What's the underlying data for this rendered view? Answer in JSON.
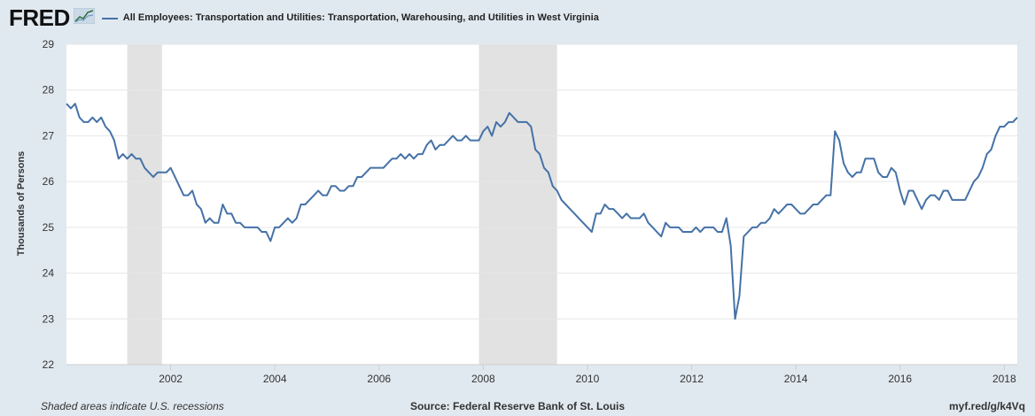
{
  "header": {
    "logo": "FRED",
    "logo_icon": "chart-trend-icon"
  },
  "footer": {
    "left": "Shaded areas indicate U.S. recessions",
    "center": "Source: Federal Reserve Bank of St. Louis",
    "right": "myf.red/g/k4Vq"
  },
  "colors": {
    "background": "#e1e9f0",
    "plot_background": "#ffffff",
    "line": "#4572a7",
    "recession": "#e2e2e2",
    "grid": "#e6e6e6"
  },
  "chart_data": {
    "type": "line",
    "title": "All Employees: Transportation and Utilities: Transportation, Warehousing, and Utilities in West Virginia",
    "xlabel": "",
    "ylabel": "Thousands of Persons",
    "ylim": [
      22,
      29
    ],
    "yticks": [
      22,
      23,
      24,
      25,
      26,
      27,
      28,
      29
    ],
    "xlim": [
      "2000-01",
      "2018-04"
    ],
    "xticks": [
      "2002",
      "2004",
      "2006",
      "2008",
      "2010",
      "2012",
      "2014",
      "2016",
      "2018"
    ],
    "grid": "horizontal",
    "recessions": [
      {
        "start": "2001-03",
        "end": "2001-11"
      },
      {
        "start": "2007-12",
        "end": "2009-06"
      }
    ],
    "series": [
      {
        "name": "All Employees: Transportation and Utilities: Transportation, Warehousing, and Utilities in West Virginia",
        "x": [
          "2000-01",
          "2000-02",
          "2000-03",
          "2000-04",
          "2000-05",
          "2000-06",
          "2000-07",
          "2000-08",
          "2000-09",
          "2000-10",
          "2000-11",
          "2000-12",
          "2001-01",
          "2001-02",
          "2001-03",
          "2001-04",
          "2001-05",
          "2001-06",
          "2001-07",
          "2001-08",
          "2001-09",
          "2001-10",
          "2001-11",
          "2001-12",
          "2002-01",
          "2002-02",
          "2002-03",
          "2002-04",
          "2002-05",
          "2002-06",
          "2002-07",
          "2002-08",
          "2002-09",
          "2002-10",
          "2002-11",
          "2002-12",
          "2003-01",
          "2003-02",
          "2003-03",
          "2003-04",
          "2003-05",
          "2003-06",
          "2003-07",
          "2003-08",
          "2003-09",
          "2003-10",
          "2003-11",
          "2003-12",
          "2004-01",
          "2004-02",
          "2004-03",
          "2004-04",
          "2004-05",
          "2004-06",
          "2004-07",
          "2004-08",
          "2004-09",
          "2004-10",
          "2004-11",
          "2004-12",
          "2005-01",
          "2005-02",
          "2005-03",
          "2005-04",
          "2005-05",
          "2005-06",
          "2005-07",
          "2005-08",
          "2005-09",
          "2005-10",
          "2005-11",
          "2005-12",
          "2006-01",
          "2006-02",
          "2006-03",
          "2006-04",
          "2006-05",
          "2006-06",
          "2006-07",
          "2006-08",
          "2006-09",
          "2006-10",
          "2006-11",
          "2006-12",
          "2007-01",
          "2007-02",
          "2007-03",
          "2007-04",
          "2007-05",
          "2007-06",
          "2007-07",
          "2007-08",
          "2007-09",
          "2007-10",
          "2007-11",
          "2007-12",
          "2008-01",
          "2008-02",
          "2008-03",
          "2008-04",
          "2008-05",
          "2008-06",
          "2008-07",
          "2008-08",
          "2008-09",
          "2008-10",
          "2008-11",
          "2008-12",
          "2009-01",
          "2009-02",
          "2009-03",
          "2009-04",
          "2009-05",
          "2009-06",
          "2009-07",
          "2009-08",
          "2009-09",
          "2009-10",
          "2009-11",
          "2009-12",
          "2010-01",
          "2010-02",
          "2010-03",
          "2010-04",
          "2010-05",
          "2010-06",
          "2010-07",
          "2010-08",
          "2010-09",
          "2010-10",
          "2010-11",
          "2010-12",
          "2011-01",
          "2011-02",
          "2011-03",
          "2011-04",
          "2011-05",
          "2011-06",
          "2011-07",
          "2011-08",
          "2011-09",
          "2011-10",
          "2011-11",
          "2011-12",
          "2012-01",
          "2012-02",
          "2012-03",
          "2012-04",
          "2012-05",
          "2012-06",
          "2012-07",
          "2012-08",
          "2012-09",
          "2012-10",
          "2012-11",
          "2012-12",
          "2013-01",
          "2013-02",
          "2013-03",
          "2013-04",
          "2013-05",
          "2013-06",
          "2013-07",
          "2013-08",
          "2013-09",
          "2013-10",
          "2013-11",
          "2013-12",
          "2014-01",
          "2014-02",
          "2014-03",
          "2014-04",
          "2014-05",
          "2014-06",
          "2014-07",
          "2014-08",
          "2014-09",
          "2014-10",
          "2014-11",
          "2014-12",
          "2015-01",
          "2015-02",
          "2015-03",
          "2015-04",
          "2015-05",
          "2015-06",
          "2015-07",
          "2015-08",
          "2015-09",
          "2015-10",
          "2015-11",
          "2015-12",
          "2016-01",
          "2016-02",
          "2016-03",
          "2016-04",
          "2016-05",
          "2016-06",
          "2016-07",
          "2016-08",
          "2016-09",
          "2016-10",
          "2016-11",
          "2016-12",
          "2017-01",
          "2017-02",
          "2017-03",
          "2017-04",
          "2017-05",
          "2017-06",
          "2017-07",
          "2017-08",
          "2017-09",
          "2017-10",
          "2017-11",
          "2017-12",
          "2018-01",
          "2018-02",
          "2018-03",
          "2018-04"
        ],
        "values": [
          27.7,
          27.6,
          27.7,
          27.4,
          27.3,
          27.3,
          27.4,
          27.3,
          27.4,
          27.2,
          27.1,
          26.9,
          26.5,
          26.6,
          26.5,
          26.6,
          26.5,
          26.5,
          26.3,
          26.2,
          26.1,
          26.2,
          26.2,
          26.2,
          26.3,
          26.1,
          25.9,
          25.7,
          25.7,
          25.8,
          25.5,
          25.4,
          25.1,
          25.2,
          25.1,
          25.1,
          25.5,
          25.3,
          25.3,
          25.1,
          25.1,
          25.0,
          25.0,
          25.0,
          25.0,
          24.9,
          24.9,
          24.7,
          25.0,
          25.0,
          25.1,
          25.2,
          25.1,
          25.2,
          25.5,
          25.5,
          25.6,
          25.7,
          25.8,
          25.7,
          25.7,
          25.9,
          25.9,
          25.8,
          25.8,
          25.9,
          25.9,
          26.1,
          26.1,
          26.2,
          26.3,
          26.3,
          26.3,
          26.3,
          26.4,
          26.5,
          26.5,
          26.6,
          26.5,
          26.6,
          26.5,
          26.6,
          26.6,
          26.8,
          26.9,
          26.7,
          26.8,
          26.8,
          26.9,
          27.0,
          26.9,
          26.9,
          27.0,
          26.9,
          26.9,
          26.9,
          27.1,
          27.2,
          27.0,
          27.3,
          27.2,
          27.3,
          27.5,
          27.4,
          27.3,
          27.3,
          27.3,
          27.2,
          26.7,
          26.6,
          26.3,
          26.2,
          25.9,
          25.8,
          25.6,
          25.5,
          25.4,
          25.3,
          25.2,
          25.1,
          25.0,
          24.9,
          25.3,
          25.3,
          25.5,
          25.4,
          25.4,
          25.3,
          25.2,
          25.3,
          25.2,
          25.2,
          25.2,
          25.3,
          25.1,
          25.0,
          24.9,
          24.8,
          25.1,
          25.0,
          25.0,
          25.0,
          24.9,
          24.9,
          24.9,
          25.0,
          24.9,
          25.0,
          25.0,
          25.0,
          24.9,
          24.9,
          25.2,
          24.6,
          23.0,
          23.5,
          24.8,
          24.9,
          25.0,
          25.0,
          25.1,
          25.1,
          25.2,
          25.4,
          25.3,
          25.4,
          25.5,
          25.5,
          25.4,
          25.3,
          25.3,
          25.4,
          25.5,
          25.5,
          25.6,
          25.7,
          25.7,
          27.1,
          26.9,
          26.4,
          26.2,
          26.1,
          26.2,
          26.2,
          26.5,
          26.5,
          26.5,
          26.2,
          26.1,
          26.1,
          26.3,
          26.2,
          25.8,
          25.5,
          25.8,
          25.8,
          25.6,
          25.4,
          25.6,
          25.7,
          25.7,
          25.6,
          25.8,
          25.8,
          25.6,
          25.6,
          25.6,
          25.6,
          25.8,
          26.0,
          26.1,
          26.3,
          26.6,
          26.7,
          27.0,
          27.2,
          27.2,
          27.3,
          27.3,
          27.4
        ]
      }
    ]
  }
}
